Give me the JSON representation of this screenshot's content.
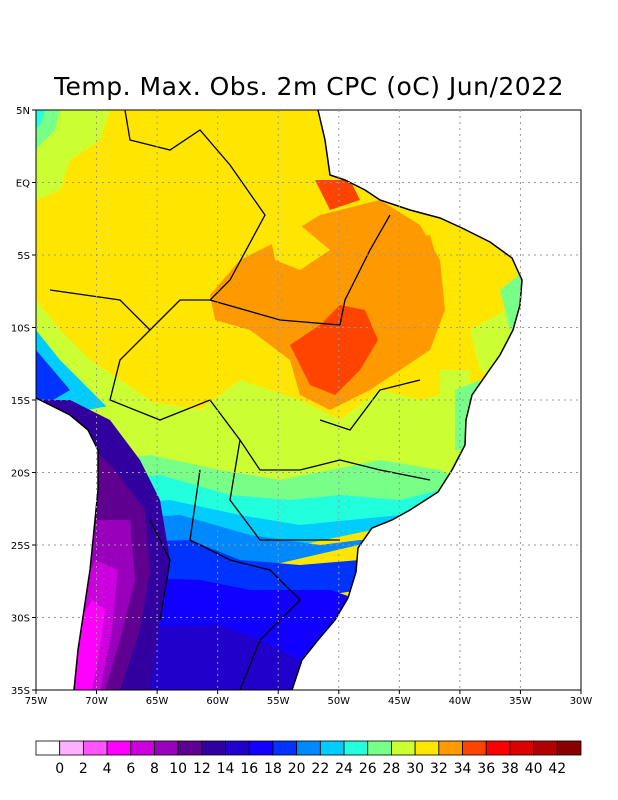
{
  "title": "Temp. Max. Obs. 2m CPC (oC) Jun/2022",
  "axes": {
    "lon_labels": [
      "75W",
      "70W",
      "65W",
      "60W",
      "55W",
      "50W",
      "45W",
      "40W",
      "35W",
      "30W"
    ],
    "lat_labels": [
      "5N",
      "EQ",
      "5S",
      "10S",
      "15S",
      "20S",
      "25S",
      "30S",
      "35S"
    ],
    "lon_range": [
      -75,
      -30
    ],
    "lat_range": [
      -35,
      5
    ]
  },
  "colorbar": {
    "labels": [
      "0",
      "2",
      "4",
      "6",
      "8",
      "10",
      "12",
      "14",
      "16",
      "18",
      "20",
      "22",
      "24",
      "26",
      "28",
      "30",
      "32",
      "34",
      "36",
      "38",
      "40",
      "42"
    ],
    "colors": [
      "#ffffff",
      "#ffb0ff",
      "#ff55ff",
      "#ff00ff",
      "#cc00dd",
      "#9900bb",
      "#5f0090",
      "#3300a0",
      "#2200cc",
      "#1100ff",
      "#0033ff",
      "#0088ff",
      "#00ccff",
      "#22ffdd",
      "#77ff88",
      "#ccff33",
      "#ffe600",
      "#ff9900",
      "#ff4400",
      "#ff0000",
      "#dd0000",
      "#b00000",
      "#880000"
    ]
  }
}
